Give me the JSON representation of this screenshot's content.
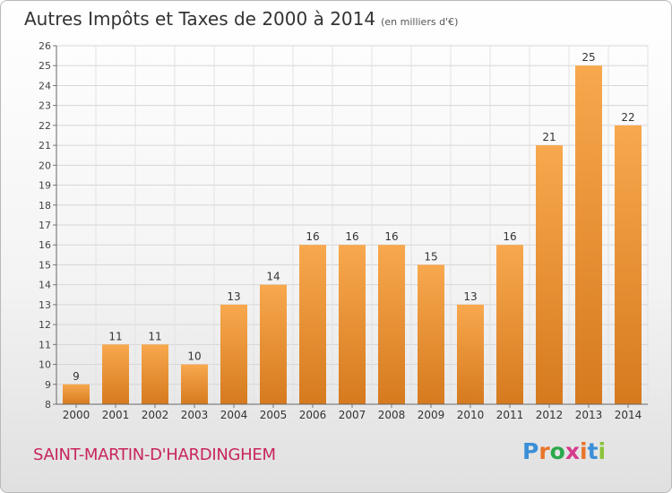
{
  "chart_data": {
    "type": "bar",
    "title": "Autres Impôts et Taxes de 2000 à 2014",
    "unit_note": "(en milliers d'€)",
    "categories": [
      "2000",
      "2001",
      "2002",
      "2003",
      "2004",
      "2005",
      "2006",
      "2007",
      "2008",
      "2009",
      "2010",
      "2011",
      "2012",
      "2013",
      "2014"
    ],
    "values": [
      9,
      11,
      11,
      10,
      13,
      14,
      16,
      16,
      16,
      15,
      13,
      16,
      21,
      25,
      22
    ],
    "ylim": [
      8,
      26
    ],
    "yticks": [
      8,
      9,
      10,
      11,
      12,
      13,
      14,
      15,
      16,
      17,
      18,
      19,
      20,
      21,
      22,
      23,
      24,
      25,
      26
    ],
    "grid": true,
    "bar_color": "#f0963a"
  },
  "commune": "SAINT-MARTIN-D'HARDINGHEM",
  "logo": {
    "letters": [
      "P",
      "r",
      "o",
      "x",
      "i",
      "t",
      "i"
    ],
    "colors": [
      "#3a8fd8",
      "#e8752a",
      "#2aa84a",
      "#d63a8a",
      "#e8752a",
      "#3a8fd8",
      "#8ac43a"
    ]
  }
}
